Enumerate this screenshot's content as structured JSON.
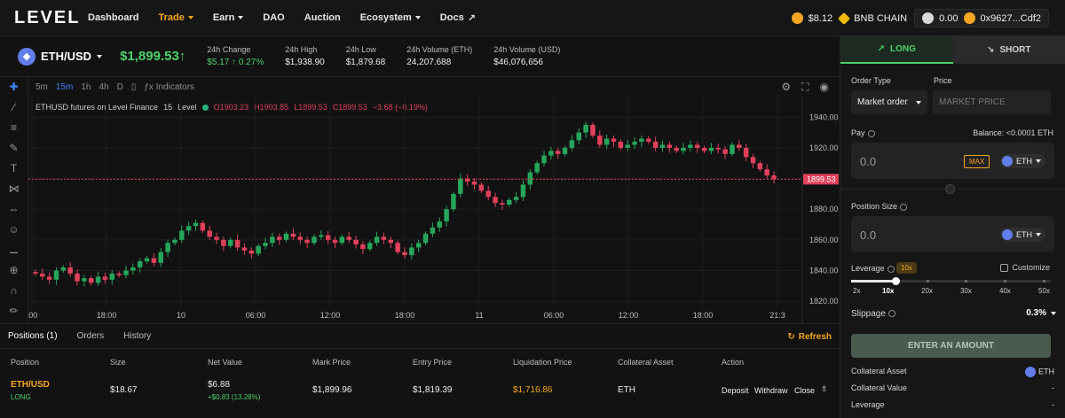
{
  "app": {
    "logo": "LEVEL"
  },
  "nav": [
    {
      "label": "Dashboard",
      "caret": false,
      "active": false
    },
    {
      "label": "Trade",
      "caret": true,
      "active": true
    },
    {
      "label": "Earn",
      "caret": true,
      "active": false
    },
    {
      "label": "DAO",
      "caret": false,
      "active": false
    },
    {
      "label": "Auction",
      "caret": false,
      "active": false
    },
    {
      "label": "Ecosystem",
      "caret": true,
      "active": false
    },
    {
      "label": "Docs",
      "caret": false,
      "active": false
    }
  ],
  "wallet": {
    "lvl_balance": "$8.12",
    "chain": "BNB CHAIN",
    "token_balance": "0.00",
    "address": "0x9627...Cdf2"
  },
  "ticker": {
    "pair": "ETH/USD",
    "price": "$1,899.53",
    "change_label": "24h Change",
    "change_value": "$5.17",
    "change_pct": "0.27%",
    "high_label": "24h High",
    "high_value": "$1,938.90",
    "low_label": "24h Low",
    "low_value": "$1,879.68",
    "vol_eth_label": "24h Volume (ETH)",
    "vol_eth_value": "24,207.688",
    "vol_usd_label": "24h Volume (USD)",
    "vol_usd_value": "$46,076,656"
  },
  "chart_toolbar": {
    "intervals": [
      "5m",
      "15m",
      "1h",
      "4h",
      "D"
    ],
    "selected": "15m",
    "indicators": "Indicators"
  },
  "chart_info": {
    "title": "ETHUSD futures on Level Finance",
    "interval": "15",
    "source": "Level",
    "o": "O1903.23",
    "h": "H1903.85",
    "l": "L1899.53",
    "c": "C1899.53",
    "chg": "−3.68 (−0.19%)"
  },
  "chart_data": {
    "type": "candlestick",
    "y_ticks": [
      1940,
      1920,
      1900,
      1880,
      1860,
      1840,
      1820
    ],
    "ylim": [
      1816,
      1950
    ],
    "x_tick_labels": [
      ":00",
      "18:00",
      "10",
      "06:00",
      "12:00",
      "18:00",
      "11",
      "06:00",
      "12:00",
      "18:00",
      "21:3"
    ],
    "last_price_label": "1899.53",
    "close_series": [
      1838,
      1836,
      1834,
      1840,
      1842,
      1838,
      1833,
      1835,
      1832,
      1836,
      1834,
      1838,
      1837,
      1840,
      1842,
      1846,
      1848,
      1845,
      1852,
      1858,
      1860,
      1866,
      1869,
      1871,
      1866,
      1862,
      1860,
      1856,
      1860,
      1855,
      1853,
      1851,
      1856,
      1858,
      1862,
      1860,
      1864,
      1862,
      1860,
      1858,
      1862,
      1863,
      1860,
      1858,
      1862,
      1860,
      1857,
      1854,
      1858,
      1862,
      1860,
      1858,
      1852,
      1850,
      1855,
      1858,
      1864,
      1868,
      1872,
      1880,
      1890,
      1900,
      1898,
      1896,
      1892,
      1888,
      1884,
      1883,
      1886,
      1888,
      1896,
      1904,
      1910,
      1915,
      1918,
      1916,
      1920,
      1925,
      1930,
      1935,
      1928,
      1922,
      1926,
      1924,
      1920,
      1922,
      1924,
      1926,
      1924,
      1920,
      1922,
      1920,
      1918,
      1920,
      1922,
      1920,
      1918,
      1920,
      1919,
      1916,
      1922,
      1920,
      1914,
      1910,
      1906,
      1902,
      1899.53
    ]
  },
  "positions": {
    "tabs": [
      "Positions (1)",
      "Orders",
      "History"
    ],
    "refresh": "Refresh",
    "headers": [
      "Position",
      "Size",
      "Net Value",
      "Mark Price",
      "Entry Price",
      "Liquidation Price",
      "Collateral Asset",
      "Action"
    ],
    "row": {
      "market": "ETH/USD",
      "side": "LONG",
      "size": "$18.67",
      "net_value": "$6.88",
      "net_pnl": "+$0.83 (13.28%)",
      "mark": "$1,899.96",
      "entry": "$1,819.39",
      "liq": "$1,716.86",
      "collateral": "ETH",
      "actions": [
        "Deposit",
        "Withdraw",
        "Close"
      ]
    }
  },
  "panel": {
    "long_label": "LONG",
    "short_label": "SHORT",
    "order_type_label": "Order Type",
    "order_type_value": "Market order",
    "price_label": "Price",
    "price_placeholder": "MARKET PRICE",
    "pay_label": "Pay",
    "balance": "Balance: <0.0001 ETH",
    "pay_value": "0.0",
    "max_label": "MAX",
    "pay_token": "ETH",
    "size_label": "Position Size",
    "size_value": "0.0",
    "size_token": "ETH",
    "leverage_label": "Leverage",
    "leverage_badge": "10x",
    "customize_label": "Customize",
    "leverage_value": 0.22,
    "leverage_ticks": [
      "2x",
      "10x",
      "20x",
      "30x",
      "40x",
      "50x"
    ],
    "slippage_label": "Slippage",
    "slippage_value": "0.3%",
    "enter_label": "ENTER AN AMOUNT",
    "collateral_asset_label": "Collateral Asset",
    "collateral_asset_value": "ETH",
    "collateral_value_label": "Collateral Value",
    "collateral_value_value": "-",
    "leverage_row_label": "Leverage",
    "leverage_row_value": "-"
  }
}
